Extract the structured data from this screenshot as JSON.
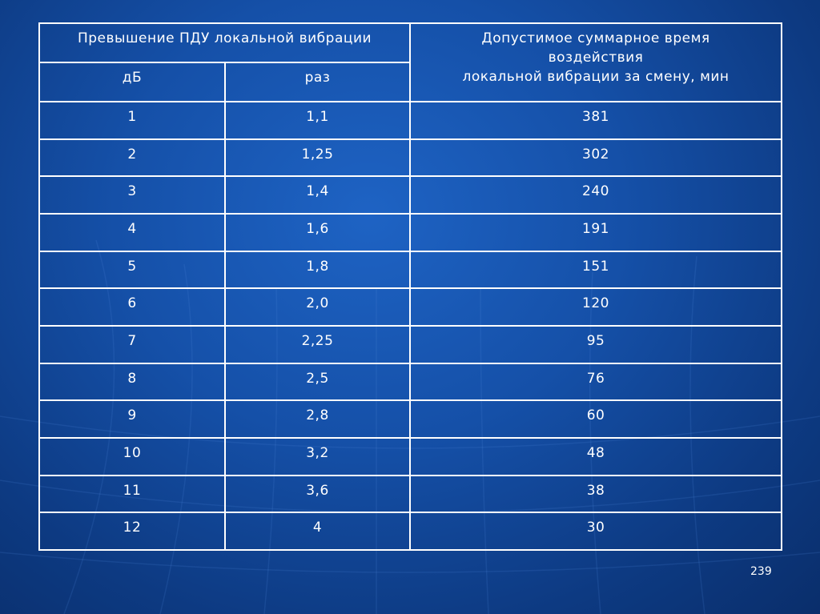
{
  "header": {
    "group_title": "Превышение ПДУ локальной вибрации",
    "col_db": "дБ",
    "col_times": "раз",
    "col_time_lines": [
      "Допустимое суммарное время",
      "воздействия",
      "локальной вибрации за смену, мин"
    ]
  },
  "rows": [
    {
      "db": "1",
      "times": "1,1",
      "minutes": "381"
    },
    {
      "db": "2",
      "times": "1,25",
      "minutes": "302"
    },
    {
      "db": "3",
      "times": "1,4",
      "minutes": "240"
    },
    {
      "db": "4",
      "times": "1,6",
      "minutes": "191"
    },
    {
      "db": "5",
      "times": "1,8",
      "minutes": "151"
    },
    {
      "db": "6",
      "times": "2,0",
      "minutes": "120"
    },
    {
      "db": "7",
      "times": "2,25",
      "minutes": "95"
    },
    {
      "db": "8",
      "times": "2,5",
      "minutes": "76"
    },
    {
      "db": "9",
      "times": "2,8",
      "minutes": "60"
    },
    {
      "db": "10",
      "times": "3,2",
      "minutes": "48"
    },
    {
      "db": "11",
      "times": "3,6",
      "minutes": "38"
    },
    {
      "db": "12",
      "times": "4",
      "minutes": "30"
    }
  ],
  "page_number": "239",
  "colors": {
    "background": "#1550a8",
    "grid": "#ffffff",
    "text": "#ffffff"
  }
}
